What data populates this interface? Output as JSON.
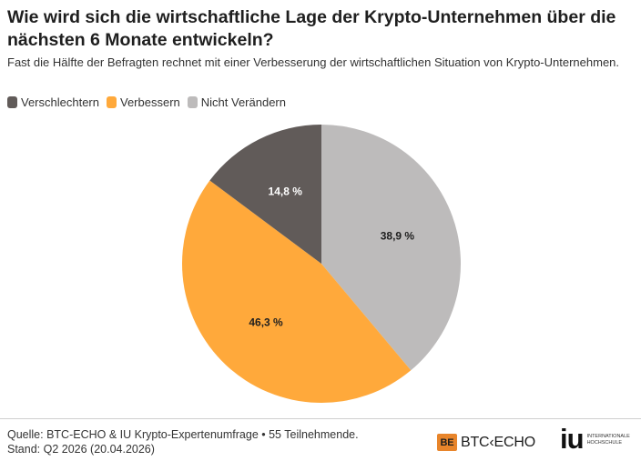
{
  "title": "Wie wird sich die wirtschaftliche Lage der Krypto-Unternehmen über die nächsten 6 Monate entwickeln?",
  "subtitle": "Fast die Hälfte der Befragten rechnet mit einer Verbesserung der wirtschaftlichen Situation von Krypto-Unternehmen.",
  "legend": [
    {
      "label": "Verschlechtern",
      "color": "#615b59"
    },
    {
      "label": "Verbessern",
      "color": "#ffa93b"
    },
    {
      "label": "Nicht Verändern",
      "color": "#bdbbbb"
    }
  ],
  "chart_data": {
    "type": "pie",
    "title": "Wie wird sich die wirtschaftliche Lage der Krypto-Unternehmen über die nächsten 6 Monate entwickeln?",
    "slices": [
      {
        "label": "Nicht Verändern",
        "value": 38.9,
        "display": "38,9 %",
        "color": "#bdbbbb"
      },
      {
        "label": "Verbessern",
        "value": 46.3,
        "display": "46,3 %",
        "color": "#ffa93b"
      },
      {
        "label": "Verschlechtern",
        "value": 14.8,
        "display": "14,8 %",
        "color": "#615b59"
      }
    ],
    "start": "12 o'clock",
    "direction": "clockwise",
    "legend_position": "top-left"
  },
  "footer": {
    "source": "Quelle: BTC-ECHO & IU Krypto-Expertenumfrage • 55 Teilnehmende.",
    "date": "Stand: Q2 2026 (20.04.2026)",
    "logo_btc_mark": "BE",
    "logo_btc_text": "BTC‹ECHO",
    "logo_iu_text": "iu",
    "logo_iu_subtext": "INTERNATIONALE HOCHSCHULE"
  }
}
